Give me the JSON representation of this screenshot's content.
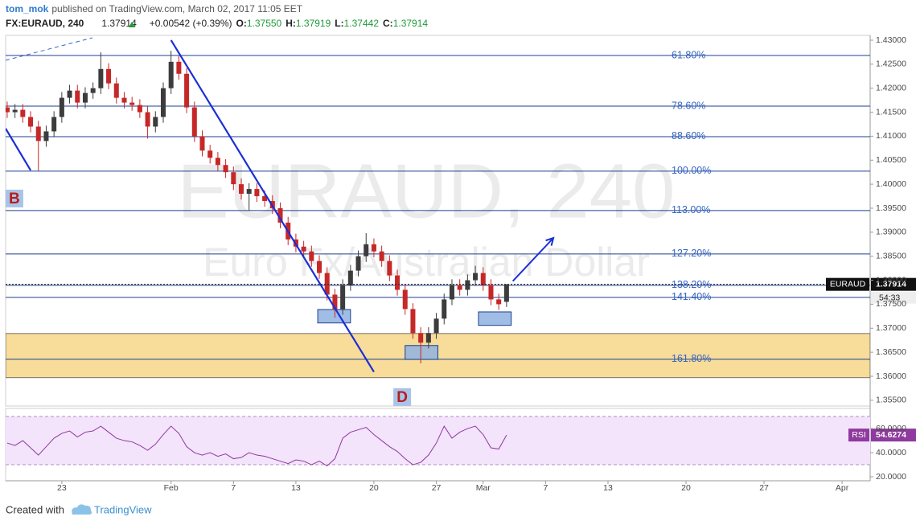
{
  "header": {
    "author": "tom_mok",
    "published": "published on TradingView.com, March 02, 2017 11:05 EET",
    "symbol": "FX:EURAUD, 240",
    "last": "1.37914",
    "change": "+0.00542 (+0.39%)",
    "ohlc": [
      {
        "label": "O:",
        "value": "1.37550"
      },
      {
        "label": "H:",
        "value": "1.37919"
      },
      {
        "label": "L:",
        "value": "1.37442"
      },
      {
        "label": "C:",
        "value": "1.37914"
      }
    ]
  },
  "footer": {
    "created": "Created with",
    "brand": "TradingView"
  },
  "chart_data": {
    "type": "candlestick",
    "watermark": "EURAUD, 240",
    "watermark_sub": "Euro Fx/Australian Dollar",
    "up_color": "#3c3c3c",
    "down_color": "#c62828",
    "x": [
      -3.5,
      -3,
      -2.5,
      -2,
      -1.5,
      -1,
      -0.5,
      0,
      0.5,
      1,
      1.5,
      2,
      2.5,
      3,
      3.5,
      4,
      4.5,
      5,
      5.5,
      6,
      6.5,
      7,
      7.5,
      8,
      8.5,
      9,
      9.5,
      10,
      10.5,
      11,
      11.5,
      12,
      12.5,
      13,
      13.5,
      14,
      14.5,
      15,
      15.5,
      16,
      16.5,
      17,
      17.5,
      18,
      18.5,
      19,
      19.5,
      20,
      20.5,
      21,
      21.5,
      22,
      22.5,
      23,
      23.5,
      24,
      24.5,
      25,
      25.5,
      26,
      26.5,
      27,
      27.5,
      28,
      28.5
    ],
    "open": [
      1.416,
      1.415,
      1.4155,
      1.414,
      1.412,
      1.409,
      1.411,
      1.414,
      1.418,
      1.4195,
      1.417,
      1.419,
      1.42,
      1.424,
      1.421,
      1.418,
      1.417,
      1.4165,
      1.415,
      1.412,
      1.414,
      1.42,
      1.4255,
      1.423,
      1.416,
      1.41,
      1.407,
      1.4055,
      1.404,
      1.4025,
      1.4,
      1.398,
      1.399,
      1.3975,
      1.3965,
      1.395,
      1.392,
      1.3885,
      1.387,
      1.386,
      1.384,
      1.3815,
      1.377,
      1.374,
      1.379,
      1.382,
      1.385,
      1.3875,
      1.386,
      1.384,
      1.381,
      1.378,
      1.374,
      1.369,
      1.367,
      1.369,
      1.372,
      1.376,
      1.379,
      1.378,
      1.38,
      1.3815,
      1.379,
      1.376,
      1.3755
    ],
    "high": [
      1.4172,
      1.4167,
      1.4167,
      1.4152,
      1.4132,
      1.4122,
      1.4152,
      1.4192,
      1.4207,
      1.4207,
      1.4202,
      1.4212,
      1.4275,
      1.4252,
      1.4222,
      1.4192,
      1.4182,
      1.4177,
      1.4162,
      1.4152,
      1.4212,
      1.4278,
      1.4267,
      1.4242,
      1.4172,
      1.4112,
      1.4082,
      1.4067,
      1.4052,
      1.4037,
      1.4012,
      1.4002,
      1.4002,
      1.3987,
      1.3977,
      1.3962,
      1.3932,
      1.3897,
      1.3882,
      1.3872,
      1.3852,
      1.3827,
      1.3782,
      1.3802,
      1.3832,
      1.3862,
      1.3898,
      1.3887,
      1.3872,
      1.3852,
      1.3822,
      1.3792,
      1.3752,
      1.3702,
      1.3702,
      1.3732,
      1.3772,
      1.3802,
      1.3802,
      1.3812,
      1.383,
      1.3827,
      1.3802,
      1.3772,
      1.37919
    ],
    "low": [
      1.4138,
      1.4138,
      1.4128,
      1.4108,
      1.4028,
      1.4078,
      1.4098,
      1.4128,
      1.4168,
      1.4158,
      1.4158,
      1.4178,
      1.4188,
      1.4198,
      1.4168,
      1.4158,
      1.4153,
      1.4138,
      1.4095,
      1.4108,
      1.4128,
      1.4188,
      1.4218,
      1.4148,
      1.4088,
      1.4058,
      1.4043,
      1.4028,
      1.4013,
      1.3988,
      1.3968,
      1.3945,
      1.3963,
      1.3953,
      1.3938,
      1.3908,
      1.3873,
      1.3858,
      1.3848,
      1.3828,
      1.3803,
      1.3758,
      1.3722,
      1.3728,
      1.3778,
      1.3808,
      1.3838,
      1.3848,
      1.3828,
      1.3798,
      1.3768,
      1.3728,
      1.3678,
      1.3627,
      1.3658,
      1.3678,
      1.3708,
      1.3748,
      1.3768,
      1.3768,
      1.3788,
      1.3778,
      1.3748,
      1.3738,
      1.37442
    ],
    "close": [
      1.415,
      1.4155,
      1.414,
      1.412,
      1.409,
      1.411,
      1.414,
      1.418,
      1.4195,
      1.417,
      1.419,
      1.42,
      1.424,
      1.421,
      1.418,
      1.417,
      1.4165,
      1.415,
      1.412,
      1.414,
      1.42,
      1.4255,
      1.423,
      1.416,
      1.41,
      1.407,
      1.4055,
      1.404,
      1.4025,
      1.4,
      1.398,
      1.399,
      1.3975,
      1.3965,
      1.395,
      1.392,
      1.3885,
      1.387,
      1.386,
      1.384,
      1.3815,
      1.377,
      1.374,
      1.379,
      1.382,
      1.385,
      1.3875,
      1.386,
      1.384,
      1.381,
      1.378,
      1.374,
      1.369,
      1.367,
      1.369,
      1.372,
      1.376,
      1.379,
      1.378,
      1.38,
      1.3815,
      1.379,
      1.376,
      1.375,
      1.37914
    ],
    "xlim": [
      -3.6,
      51.8
    ],
    "xticks": [
      {
        "value": 0,
        "label": "23"
      },
      {
        "value": 7,
        "label": "Feb"
      },
      {
        "value": 11,
        "label": "7"
      },
      {
        "value": 15,
        "label": "13"
      },
      {
        "value": 20,
        "label": "20"
      },
      {
        "value": 24,
        "label": "27"
      },
      {
        "value": 27,
        "label": "Mar"
      },
      {
        "value": 31,
        "label": "7"
      },
      {
        "value": 35,
        "label": "13"
      },
      {
        "value": 40,
        "label": "20"
      },
      {
        "value": 45,
        "label": "27"
      },
      {
        "value": 50,
        "label": "Apr"
      }
    ],
    "ylim": [
      1.3538,
      1.431
    ],
    "yticks": [
      {
        "value": 1.43,
        "label": "1.43000"
      },
      {
        "value": 1.425,
        "label": "1.42500"
      },
      {
        "value": 1.42,
        "label": "1.42000"
      },
      {
        "value": 1.415,
        "label": "1.41500"
      },
      {
        "value": 1.41,
        "label": "1.41000"
      },
      {
        "value": 1.405,
        "label": "1.40500"
      },
      {
        "value": 1.4,
        "label": "1.40000"
      },
      {
        "value": 1.395,
        "label": "1.39500"
      },
      {
        "value": 1.39,
        "label": "1.39000"
      },
      {
        "value": 1.385,
        "label": "1.38500"
      },
      {
        "value": 1.38,
        "label": "1.38000"
      },
      {
        "value": 1.375,
        "label": "1.37500"
      },
      {
        "value": 1.37,
        "label": "1.37000"
      },
      {
        "value": 1.365,
        "label": "1.36500"
      },
      {
        "value": 1.36,
        "label": "1.36000"
      },
      {
        "value": 1.355,
        "label": "1.35500"
      }
    ],
    "fib": {
      "line_color": "#1f3f8f",
      "label_color": "#3466c2",
      "levels": [
        {
          "label": "61.80%",
          "value": 1.42682
        },
        {
          "label": "78.60%",
          "value": 1.41627
        },
        {
          "label": "88.60%",
          "value": 1.40991
        },
        {
          "label": "100.00%",
          "value": 1.40271
        },
        {
          "label": "113.00%",
          "value": 1.39451
        },
        {
          "label": "127.20%",
          "value": 1.38547
        },
        {
          "label": "138.20%",
          "value": 1.37894
        },
        {
          "label": "141.40%",
          "value": 1.37643
        },
        {
          "label": "161.80%",
          "value": 1.36354
        }
      ]
    },
    "zone": {
      "range": [
        1.3597,
        1.3689
      ],
      "color": "#f7dc9a"
    },
    "trendlines": [
      {
        "x": [
          7.0,
          20.0
        ],
        "y": [
          1.43,
          1.3609
        ],
        "color": "#1a2fd6",
        "dashed": false
      },
      {
        "x": [
          -3.6,
          -2.0
        ],
        "y": [
          1.4116,
          1.4029
        ],
        "color": "#1a2fd6",
        "dashed": false
      },
      {
        "x": [
          -3.6,
          1.96
        ],
        "y": [
          1.42581,
          1.4305
        ],
        "color": "#3a64d6",
        "dashed": true
      }
    ],
    "arrow": {
      "x": [
        28.9,
        31.5
      ],
      "y": [
        1.3798,
        1.3888
      ],
      "color": "#1a2fd6"
    },
    "boxes": [
      {
        "x": [
          16.4,
          18.5
        ],
        "y": [
          1.3739,
          1.3711
        ]
      },
      {
        "x": [
          22.0,
          24.1
        ],
        "y": [
          1.3664,
          1.3635
        ]
      },
      {
        "x": [
          26.7,
          28.8
        ],
        "y": [
          1.3734,
          1.3706
        ]
      }
    ],
    "box_color": "#8fb3e0",
    "pattern_labels": [
      {
        "text": "B",
        "x": -3.45,
        "y": 1.39702
      },
      {
        "text": "D",
        "x": 21.4,
        "y": 1.35567
      }
    ],
    "last_price": {
      "label": "EURAUD",
      "value": 1.37914,
      "countdown": "54:33"
    },
    "rsi": {
      "name": "RSI",
      "color": "#8e3a9e",
      "ylim": [
        16.7,
        76.7
      ],
      "yticks": [
        {
          "value": 60,
          "label": "60.0000"
        },
        {
          "value": 40,
          "label": "40.0000"
        },
        {
          "value": 20,
          "label": "20.0000"
        }
      ],
      "bands": [
        30,
        70
      ],
      "values": [
        48,
        46,
        50,
        44,
        38,
        45,
        52,
        56,
        58,
        53,
        57,
        58,
        62,
        57,
        52,
        50,
        49,
        46,
        42,
        47,
        55,
        62,
        56,
        45,
        40,
        38,
        40,
        37,
        39,
        35,
        36,
        40,
        38,
        37,
        35,
        33,
        31,
        34,
        33,
        30,
        33,
        29,
        35,
        52,
        57,
        59,
        61,
        55,
        50,
        45,
        41,
        35,
        30,
        32,
        38,
        48,
        62,
        52,
        57,
        60,
        62,
        55,
        44,
        43,
        54.6274
      ]
    }
  }
}
